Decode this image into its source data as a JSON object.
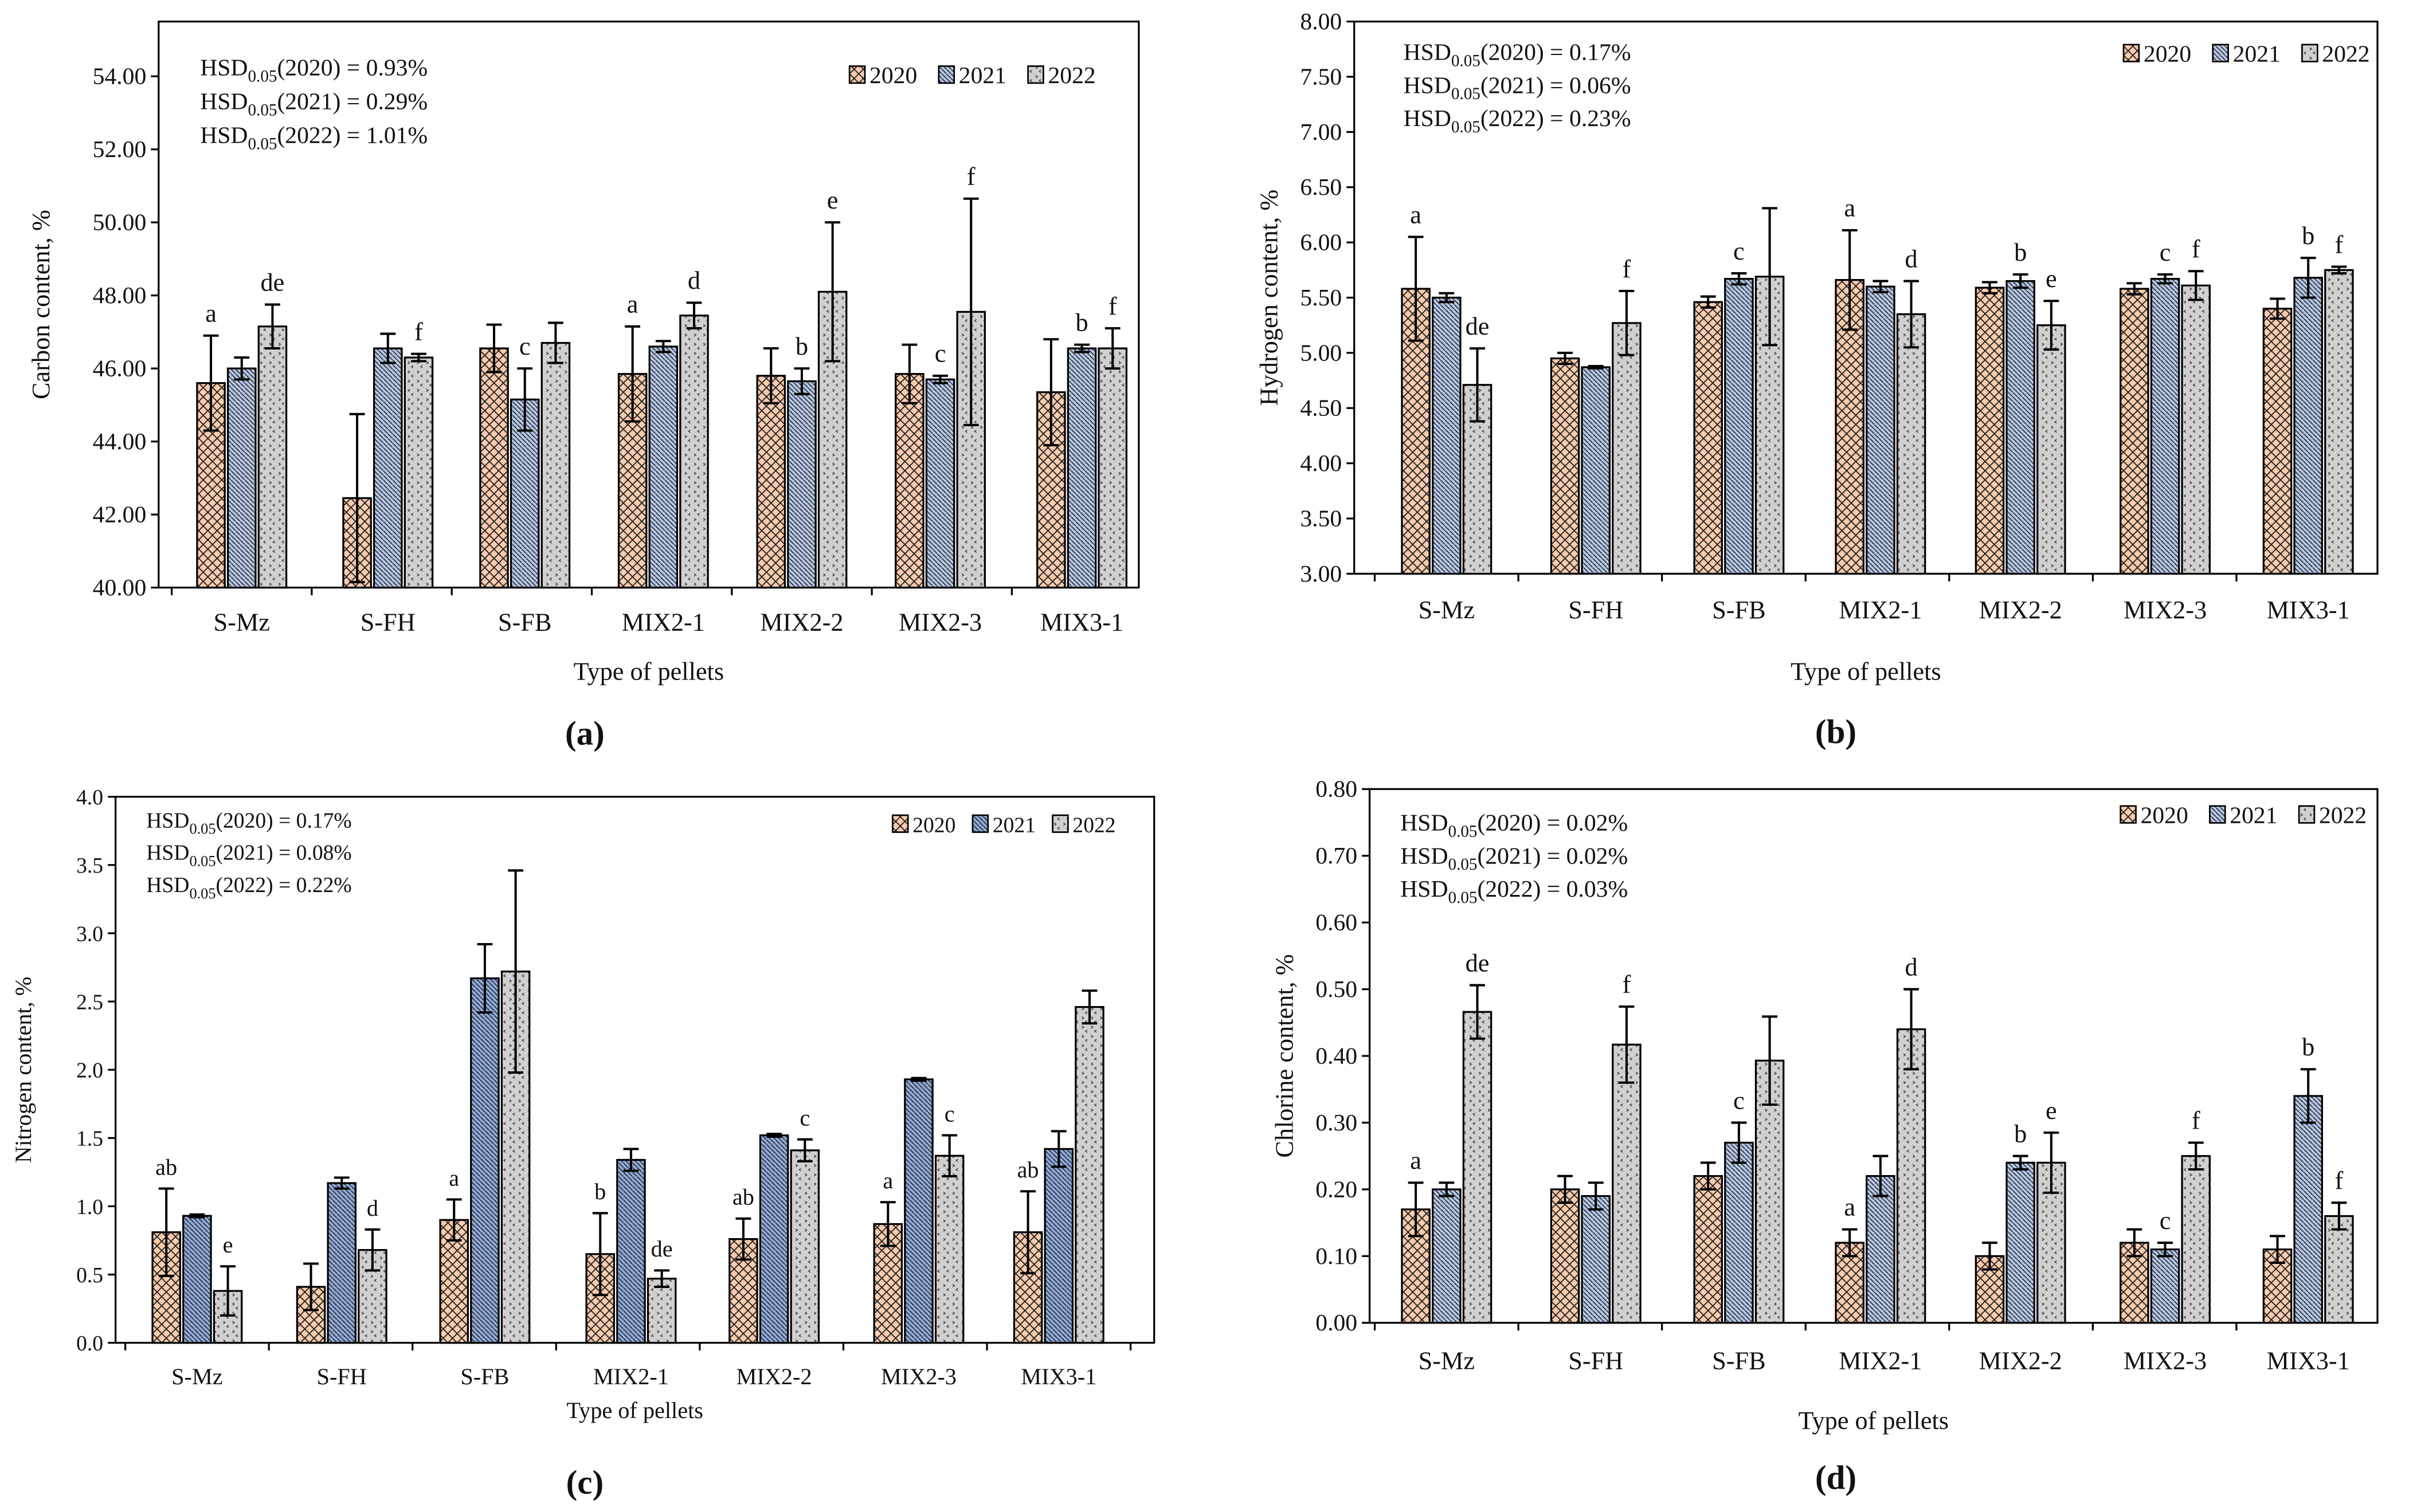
{
  "colors": {
    "y2020": "#f8cbad",
    "y2021": "#b4c7e7",
    "y2021_c": "#8faadc",
    "y2022": "#d0d0d0",
    "stroke": "#000000"
  },
  "chart_data": [
    {
      "panel": "(a)",
      "type": "bar",
      "xlabel": "Type of pellets",
      "ylabel": "Carbon content, %",
      "ylim": [
        40,
        55.5
      ],
      "yticks": [
        40,
        42,
        44,
        46,
        48,
        50,
        52,
        54
      ],
      "tick_decimals": 2,
      "categories": [
        "S-Mz",
        "S-FH",
        "S-FB",
        "MIX2-1",
        "MIX2-2",
        "MIX2-3",
        "MIX3-1"
      ],
      "legend": [
        "2020",
        "2021",
        "2022"
      ],
      "legend_position": "top-right",
      "hsd": [
        {
          "main": "HSD",
          "sub": "0.05",
          "rest": "(2020) = 0.93%"
        },
        {
          "main": "HSD",
          "sub": "0.05",
          "rest": "(2021) = 0.29%"
        },
        {
          "main": "HSD",
          "sub": "0.05",
          "rest": "(2022) = 1.01%"
        }
      ],
      "series": [
        {
          "name": "2020",
          "values": [
            45.6,
            42.45,
            46.55,
            45.85,
            45.8,
            45.85,
            45.35
          ],
          "errors": [
            1.3,
            2.3,
            0.65,
            1.3,
            0.75,
            0.8,
            1.45
          ],
          "letters": [
            "a",
            "",
            "",
            "a",
            "",
            "",
            ""
          ]
        },
        {
          "name": "2021",
          "values": [
            46.0,
            46.55,
            45.15,
            46.6,
            45.65,
            45.7,
            46.55
          ],
          "errors": [
            0.3,
            0.4,
            0.85,
            0.15,
            0.35,
            0.1,
            0.1
          ],
          "letters": [
            "",
            "",
            "c",
            "",
            "b",
            "c",
            "b"
          ]
        },
        {
          "name": "2022",
          "values": [
            47.15,
            46.3,
            46.7,
            47.45,
            48.1,
            47.55,
            46.55
          ],
          "errors": [
            0.6,
            0.1,
            0.55,
            0.35,
            1.9,
            3.1,
            0.55
          ],
          "letters": [
            "de",
            "f",
            "",
            "d",
            "e",
            "f",
            "f"
          ]
        }
      ]
    },
    {
      "panel": "(b)",
      "type": "bar",
      "xlabel": "Type of pellets",
      "ylabel": "Hydrogen content, %",
      "ylim": [
        3,
        8
      ],
      "yticks": [
        3,
        3.5,
        4,
        4.5,
        5,
        5.5,
        6,
        6.5,
        7,
        7.5,
        8
      ],
      "tick_decimals": 2,
      "categories": [
        "S-Mz",
        "S-FH",
        "S-FB",
        "MIX2-1",
        "MIX2-2",
        "MIX2-3",
        "MIX3-1"
      ],
      "legend": [
        "2020",
        "2021",
        "2022"
      ],
      "legend_position": "top-right",
      "hsd": [
        {
          "main": "HSD",
          "sub": "0.05",
          "rest": "(2020) = 0.17%"
        },
        {
          "main": "HSD",
          "sub": "0.05",
          "rest": "(2021) = 0.06%"
        },
        {
          "main": "HSD",
          "sub": "0.05",
          "rest": "(2022) = 0.23%"
        }
      ],
      "series": [
        {
          "name": "2020",
          "values": [
            5.58,
            4.95,
            5.46,
            5.66,
            5.59,
            5.58,
            5.4
          ],
          "errors": [
            0.47,
            0.05,
            0.05,
            0.45,
            0.05,
            0.05,
            0.09
          ],
          "letters": [
            "a",
            "",
            "",
            "a",
            "",
            "",
            ""
          ]
        },
        {
          "name": "2021",
          "values": [
            5.5,
            4.87,
            5.67,
            5.6,
            5.65,
            5.67,
            5.68
          ],
          "errors": [
            0.04,
            0.01,
            0.05,
            0.05,
            0.06,
            0.04,
            0.18
          ],
          "letters": [
            "",
            "",
            "c",
            "",
            "b",
            "c",
            "b"
          ]
        },
        {
          "name": "2022",
          "values": [
            4.71,
            5.27,
            5.69,
            5.35,
            5.25,
            5.61,
            5.75
          ],
          "errors": [
            0.33,
            0.29,
            0.62,
            0.3,
            0.22,
            0.13,
            0.03
          ],
          "letters": [
            "de",
            "f",
            "",
            "d",
            "e",
            "f",
            "f"
          ]
        }
      ]
    },
    {
      "panel": "(c)",
      "type": "bar",
      "xlabel": "Type of pellets",
      "ylabel": "Nitrogen content, %",
      "ylim": [
        0,
        4
      ],
      "yticks": [
        0,
        0.5,
        1,
        1.5,
        2,
        2.5,
        3,
        3.5,
        4
      ],
      "tick_decimals": 1,
      "categories": [
        "S-Mz",
        "S-FH",
        "S-FB",
        "MIX2-1",
        "MIX2-2",
        "MIX2-3",
        "MIX3-1"
      ],
      "legend": [
        "2020",
        "2021",
        "2022"
      ],
      "legend_position": "top-right",
      "hsd": [
        {
          "main": "HSD",
          "sub": "0.05",
          "rest": "(2020) = 0.17%"
        },
        {
          "main": "HSD",
          "sub": "0.05",
          "rest": "(2021) = 0.08%"
        },
        {
          "main": "HSD",
          "sub": "0.05",
          "rest": "(2022) = 0.22%"
        }
      ],
      "series": [
        {
          "name": "2020",
          "values": [
            0.81,
            0.41,
            0.9,
            0.65,
            0.76,
            0.87,
            0.81
          ],
          "errors": [
            0.32,
            0.17,
            0.15,
            0.3,
            0.15,
            0.16,
            0.3
          ],
          "letters": [
            "ab",
            "",
            "a",
            "b",
            "ab",
            "a",
            "ab"
          ]
        },
        {
          "name": "2021",
          "values": [
            0.93,
            1.17,
            2.67,
            1.34,
            1.52,
            1.93,
            1.42
          ],
          "errors": [
            0.01,
            0.04,
            0.25,
            0.08,
            0.01,
            0.01,
            0.13
          ],
          "letters": [
            "",
            "",
            "",
            "",
            "",
            "",
            ""
          ]
        },
        {
          "name": "2022",
          "values": [
            0.38,
            0.68,
            2.72,
            0.47,
            1.41,
            1.37,
            2.46
          ],
          "errors": [
            0.18,
            0.15,
            0.74,
            0.06,
            0.08,
            0.15,
            0.12
          ],
          "letters": [
            "e",
            "d",
            "",
            "de",
            "c",
            "c",
            ""
          ]
        }
      ]
    },
    {
      "panel": "(d)",
      "type": "bar",
      "xlabel": "Type of pellets",
      "ylabel": "Chlorine content, %",
      "ylim": [
        0,
        0.8
      ],
      "yticks": [
        0,
        0.1,
        0.2,
        0.3,
        0.4,
        0.5,
        0.6,
        0.7,
        0.8
      ],
      "tick_decimals": 2,
      "categories": [
        "S-Mz",
        "S-FH",
        "S-FB",
        "MIX2-1",
        "MIX2-2",
        "MIX2-3",
        "MIX3-1"
      ],
      "legend": [
        "2020",
        "2021",
        "2022"
      ],
      "legend_position": "top-right",
      "hsd": [
        {
          "main": "HSD",
          "sub": "0.05",
          "rest": "(2020) = 0.02%"
        },
        {
          "main": "HSD",
          "sub": "0.05",
          "rest": "(2021) = 0.02%"
        },
        {
          "main": "HSD",
          "sub": "0.05",
          "rest": "(2022) = 0.03%"
        }
      ],
      "series": [
        {
          "name": "2020",
          "values": [
            0.17,
            0.2,
            0.22,
            0.12,
            0.1,
            0.12,
            0.11
          ],
          "errors": [
            0.04,
            0.02,
            0.02,
            0.02,
            0.02,
            0.02,
            0.02
          ],
          "letters": [
            "a",
            "",
            "",
            "a",
            "",
            "",
            ""
          ]
        },
        {
          "name": "2021",
          "values": [
            0.2,
            0.19,
            0.27,
            0.22,
            0.24,
            0.11,
            0.34
          ],
          "errors": [
            0.01,
            0.02,
            0.03,
            0.03,
            0.01,
            0.01,
            0.04
          ],
          "letters": [
            "",
            "",
            "c",
            "",
            "b",
            "c",
            "b"
          ]
        },
        {
          "name": "2022",
          "values": [
            0.466,
            0.417,
            0.393,
            0.44,
            0.24,
            0.25,
            0.16
          ],
          "errors": [
            0.04,
            0.057,
            0.066,
            0.06,
            0.045,
            0.02,
            0.02
          ],
          "letters": [
            "de",
            "f",
            "",
            "d",
            "e",
            "f",
            "f"
          ]
        }
      ]
    }
  ]
}
